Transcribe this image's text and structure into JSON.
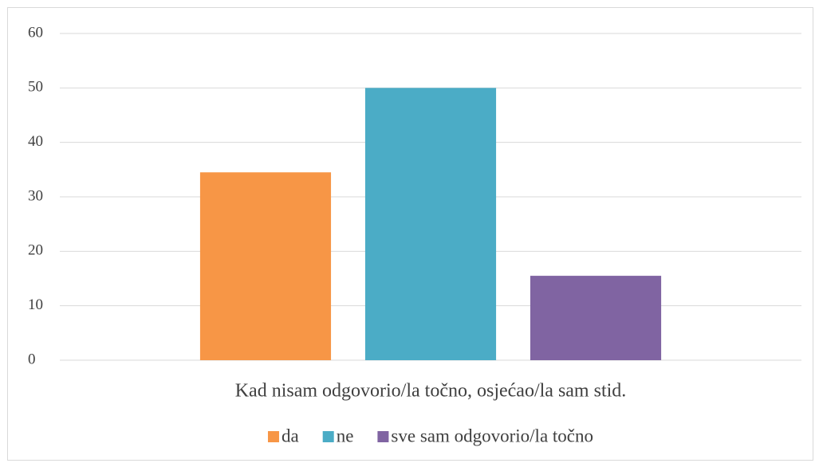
{
  "chart_data": {
    "type": "bar",
    "categories": [
      "Kad nisam odgovorio/la točno, osjećao/la sam stid."
    ],
    "series": [
      {
        "name": "da",
        "color": "#f79646",
        "values": [
          34.5
        ]
      },
      {
        "name": "ne",
        "color": "#4bacc6",
        "values": [
          50
        ]
      },
      {
        "name": "sve sam odgovorio/la točno",
        "color": "#8064a2",
        "values": [
          15.5
        ]
      }
    ],
    "ylim": [
      0,
      60
    ],
    "yticks": [
      0,
      10,
      20,
      30,
      40,
      50,
      60
    ],
    "grid": true,
    "legend": "bottom"
  }
}
